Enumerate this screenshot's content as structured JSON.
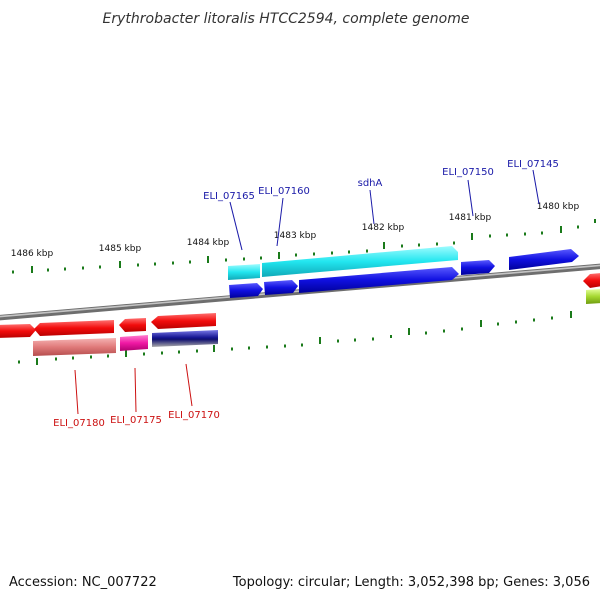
{
  "title": "Erythrobacter litoralis HTCC2594, complete genome",
  "footer": {
    "accession": "Accession: NC_007722",
    "summary": "Topology: circular; Length: 3,052,398 bp; Genes: 3,056"
  },
  "colors": {
    "backbone": "#8c8c8c",
    "tick": "#1a7a1a",
    "label_forward": "#1a1aa8",
    "label_reverse": "#cc1111"
  },
  "kbp_labels": [
    "1486 kbp",
    "1485 kbp",
    "1484 kbp",
    "1483 kbp",
    "1482 kbp",
    "1481 kbp",
    "1480 kbp"
  ],
  "genes_forward": [
    {
      "label": "ELI_07165"
    },
    {
      "label": "ELI_07160"
    },
    {
      "label": "sdhA"
    },
    {
      "label": "ELI_07150"
    },
    {
      "label": "ELI_07145"
    }
  ],
  "genes_reverse": [
    {
      "label": "ELI_07180"
    },
    {
      "label": "ELI_07175"
    },
    {
      "label": "ELI_07170"
    }
  ]
}
